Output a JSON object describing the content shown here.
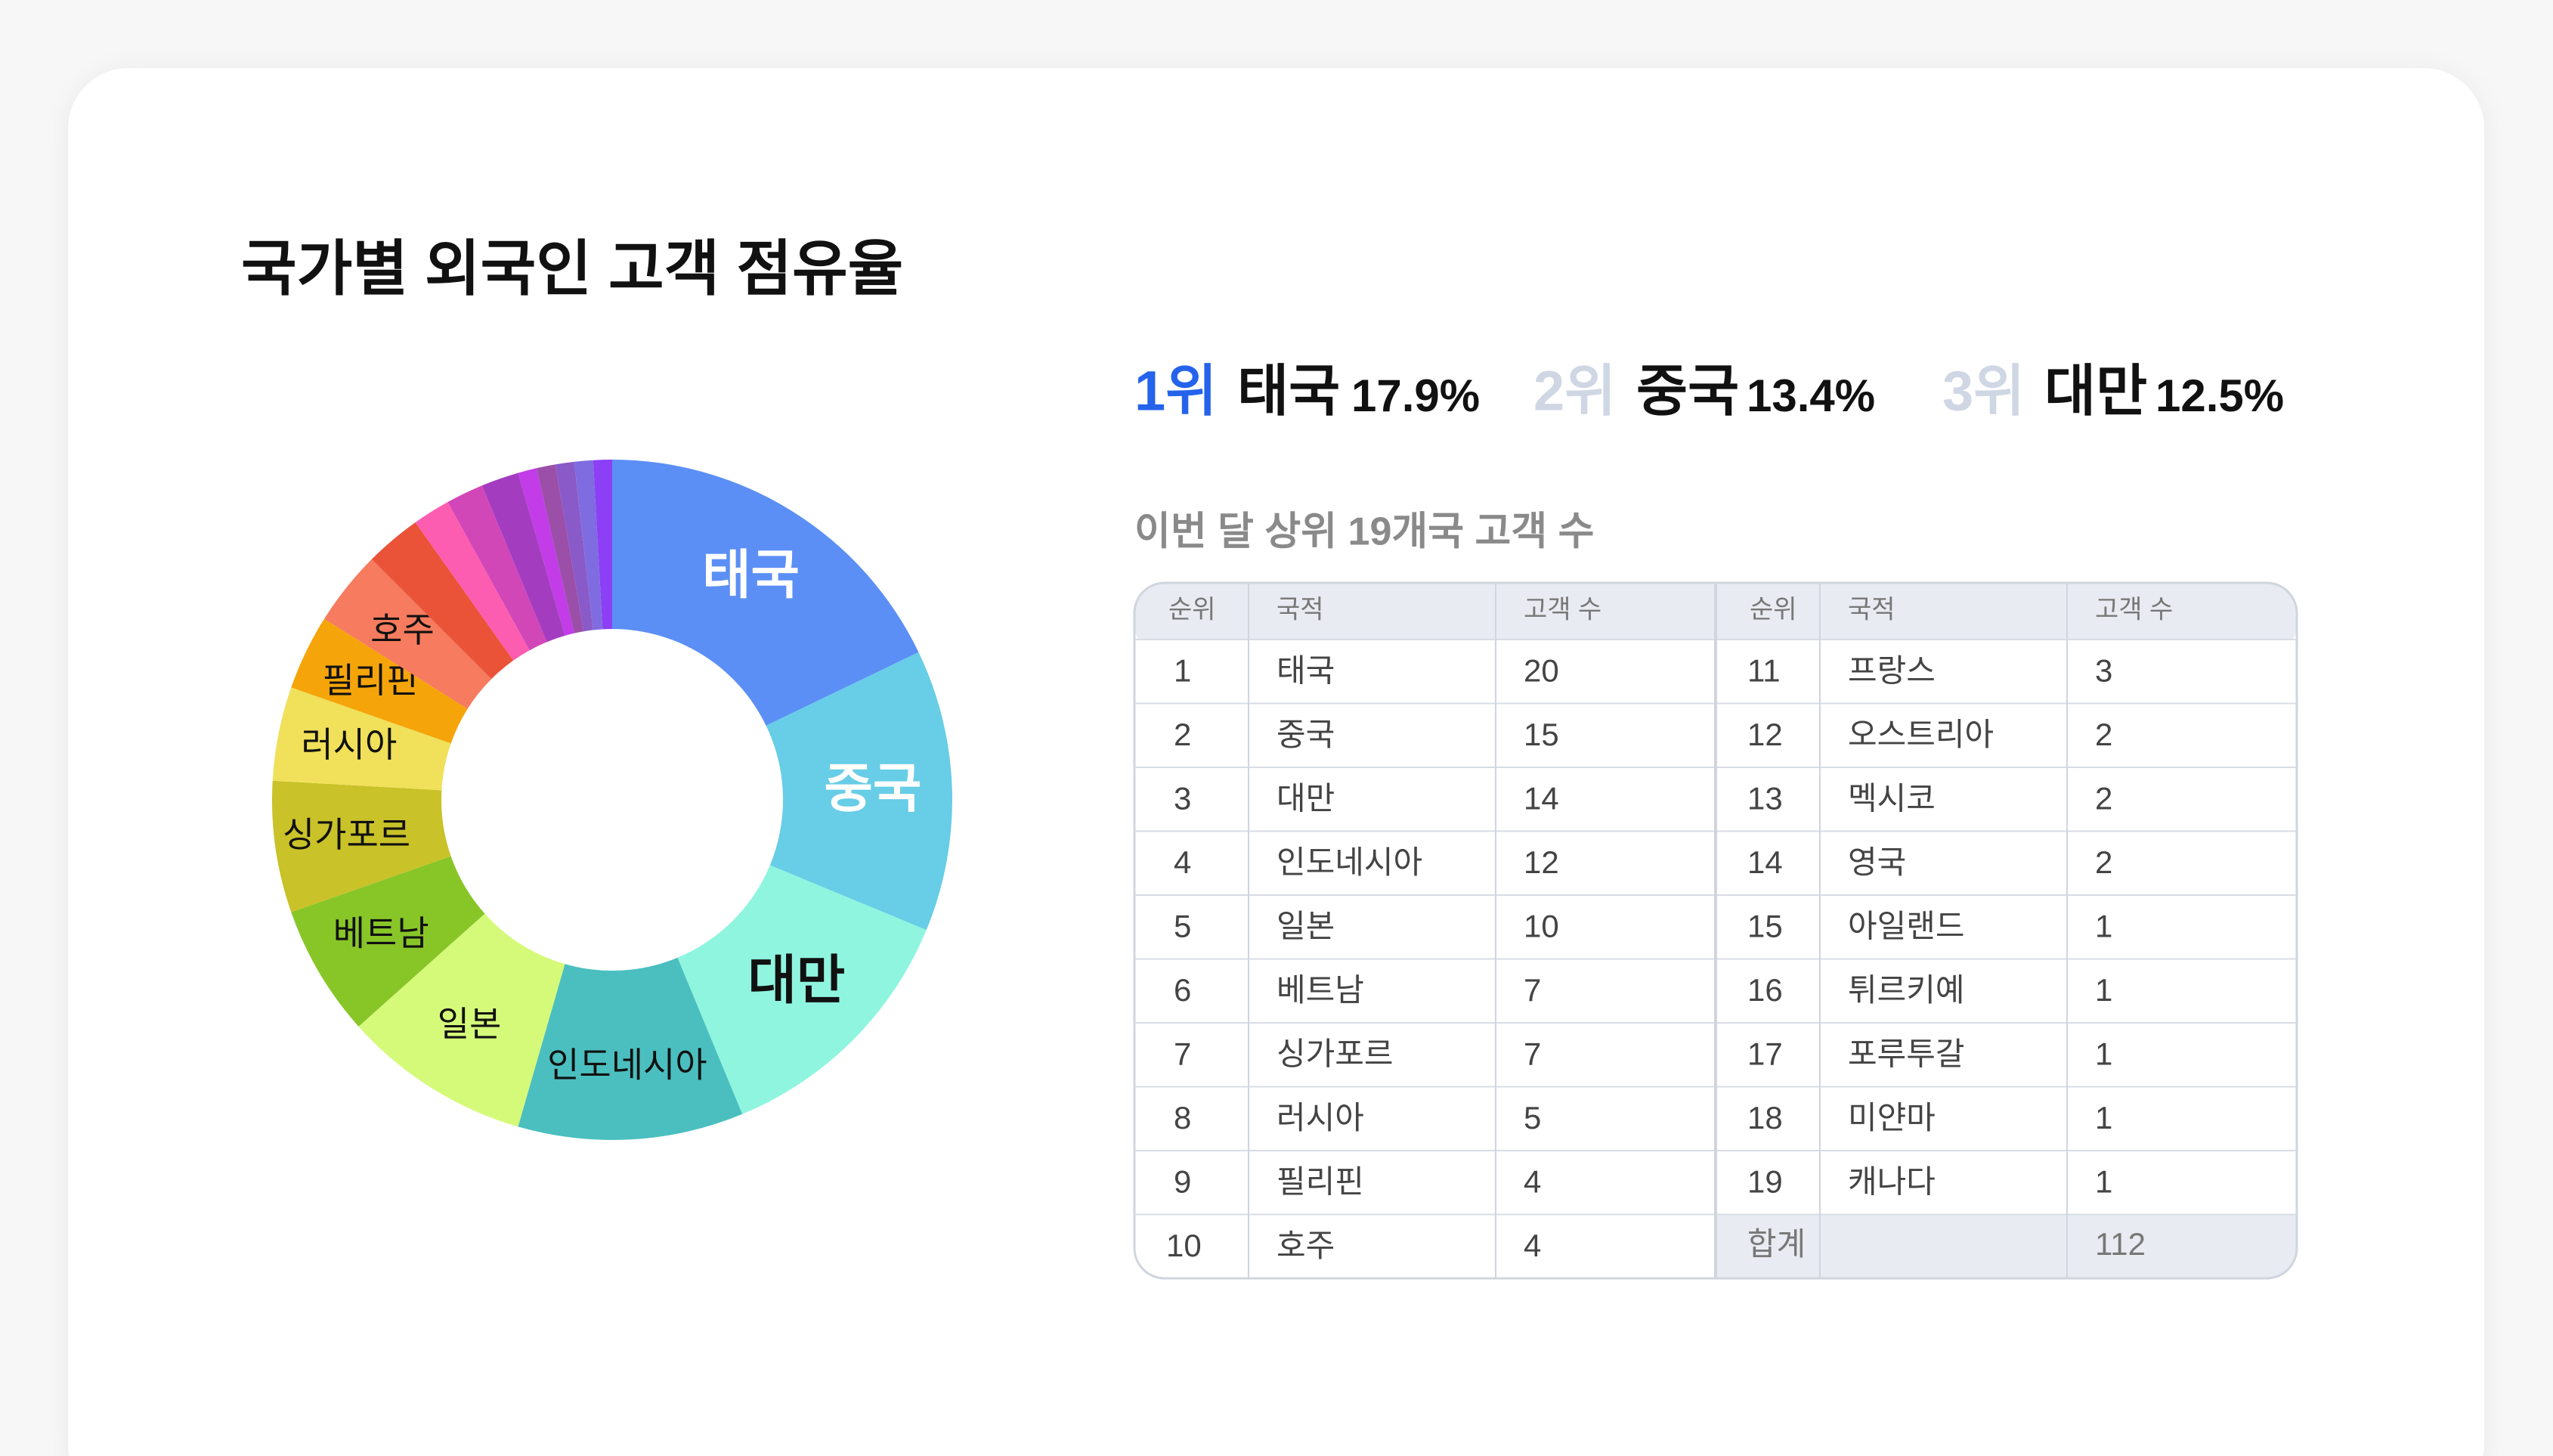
{
  "title": "국가별 외국인 고객 점유율",
  "top3": [
    {
      "rank": "1위",
      "name": "태국",
      "share": "17.9%"
    },
    {
      "rank": "2위",
      "name": "중국",
      "share": "13.4%"
    },
    {
      "rank": "3위",
      "name": "대만",
      "share": "12.5%"
    }
  ],
  "table_title": "이번 달 상위 19개국 고객 수",
  "chart_data": {
    "type": "donut",
    "categories": [
      "태국",
      "중국",
      "대만",
      "인도네시아",
      "일본",
      "베트남",
      "싱가포르",
      "러시아",
      "필리핀",
      "호주",
      "프랑스",
      "오스트리아",
      "멕시코",
      "영국",
      "아일랜드",
      "튀르키예",
      "포루투갈",
      "미얀마",
      "캐나다"
    ],
    "values": [
      20,
      15,
      14,
      12,
      10,
      7,
      7,
      5,
      4,
      4,
      3,
      2,
      2,
      2,
      1,
      1,
      1,
      1,
      1
    ],
    "colors": [
      "#5b8ff5",
      "#68cde6",
      "#8ff5df",
      "#4bbfbf",
      "#d5fa7a",
      "#88c628",
      "#c9c228",
      "#f0e05a",
      "#f5a50a",
      "#f77b5e",
      "#ea5338",
      "#fc5db0",
      "#d147b8",
      "#a43cc0",
      "#c23ce8",
      "#9b4fa8",
      "#8a5ac8",
      "#7f6ce0",
      "#8c3ff5"
    ],
    "label_colors": [
      "#ffffff",
      "#ffffff",
      "#111111",
      "#111111",
      "#111111",
      "#111111",
      "#111111",
      "#111111",
      "#111111",
      "#111111"
    ]
  },
  "table": {
    "headers": [
      "순위",
      "국적",
      "고객 수"
    ],
    "ranks": [
      1,
      2,
      3,
      4,
      5,
      6,
      7,
      8,
      9,
      10,
      11,
      12,
      13,
      14,
      15,
      16,
      17,
      18,
      19
    ],
    "total_label": "합계",
    "total": 112
  }
}
